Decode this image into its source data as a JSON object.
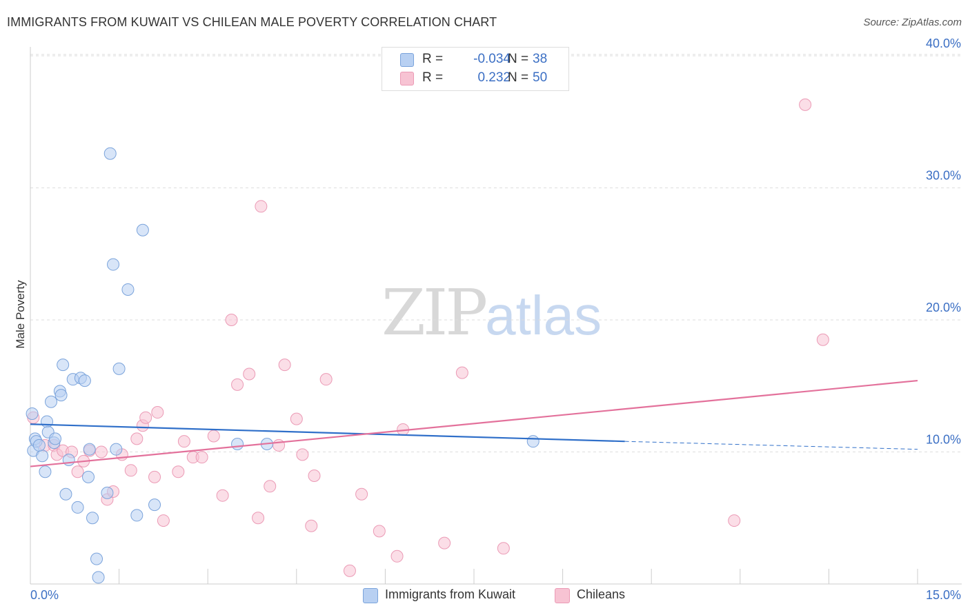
{
  "title": "IMMIGRANTS FROM KUWAIT VS CHILEAN MALE POVERTY CORRELATION CHART",
  "source": "Source: ZipAtlas.com",
  "watermark": {
    "zip": "ZIP",
    "atlas": "atlas"
  },
  "stats": [
    {
      "r_label": "R =",
      "r_value": "-0.034",
      "n_label": "N =",
      "n_value": "38"
    },
    {
      "r_label": "R =",
      "r_value": "0.232",
      "n_label": "N =",
      "n_value": "50"
    }
  ],
  "legend": [
    "Immigrants from Kuwait",
    "Chileans"
  ],
  "colors": {
    "kuwait_fill": "#b8d0f2",
    "kuwait_stroke": "#7aa3db",
    "kuwait_line": "#2f6fc9",
    "chile_fill": "#f7c3d3",
    "chile_stroke": "#eb9ab5",
    "chile_line": "#e3719b",
    "tick_text": "#3b6fc4",
    "grid": "#dddddd"
  },
  "chart_data": {
    "type": "scatter",
    "title": "IMMIGRANTS FROM KUWAIT VS CHILEAN MALE POVERTY CORRELATION CHART",
    "xlabel": "",
    "ylabel": "Male Poverty",
    "xlim": [
      0,
      15
    ],
    "ylim": [
      0,
      42
    ],
    "x_tick_labels": [
      "0.0%",
      "15.0%"
    ],
    "y_ticks": [
      10,
      20,
      30,
      40
    ],
    "y_tick_labels": [
      "10.0%",
      "20.0%",
      "30.0%",
      "40.0%"
    ],
    "grid": "horizontal dashed",
    "legend_position": "bottom",
    "series": [
      {
        "name": "Immigrants from Kuwait",
        "r": -0.034,
        "n": 38,
        "trend": {
          "x": [
            0,
            10.05
          ],
          "y": [
            12.1,
            10.8
          ],
          "dashed_to": [
            15,
            10.2
          ]
        },
        "points": [
          [
            0.03,
            12.9
          ],
          [
            0.05,
            10.1
          ],
          [
            0.08,
            11.0
          ],
          [
            0.1,
            10.8
          ],
          [
            0.2,
            9.7
          ],
          [
            0.25,
            8.5
          ],
          [
            0.28,
            12.3
          ],
          [
            0.3,
            11.5
          ],
          [
            0.35,
            13.8
          ],
          [
            0.4,
            10.7
          ],
          [
            0.42,
            11.0
          ],
          [
            0.5,
            14.6
          ],
          [
            0.52,
            14.3
          ],
          [
            0.55,
            16.6
          ],
          [
            0.6,
            6.8
          ],
          [
            0.65,
            9.4
          ],
          [
            0.72,
            15.5
          ],
          [
            0.8,
            5.8
          ],
          [
            0.85,
            15.6
          ],
          [
            0.92,
            15.4
          ],
          [
            0.98,
            8.1
          ],
          [
            1.0,
            10.2
          ],
          [
            1.05,
            5.0
          ],
          [
            1.12,
            1.9
          ],
          [
            1.15,
            0.5
          ],
          [
            1.3,
            6.9
          ],
          [
            1.35,
            32.6
          ],
          [
            1.4,
            24.2
          ],
          [
            1.45,
            10.2
          ],
          [
            1.5,
            16.3
          ],
          [
            1.65,
            22.3
          ],
          [
            1.8,
            5.2
          ],
          [
            1.9,
            26.8
          ],
          [
            2.1,
            6.0
          ],
          [
            3.5,
            10.6
          ],
          [
            4.0,
            10.6
          ],
          [
            8.5,
            10.8
          ],
          [
            0.15,
            10.5
          ]
        ]
      },
      {
        "name": "Chileans",
        "r": 0.232,
        "n": 50,
        "trend": {
          "x": [
            0,
            15
          ],
          "y": [
            8.9,
            15.4
          ]
        },
        "points": [
          [
            0.05,
            12.6
          ],
          [
            0.25,
            10.5
          ],
          [
            0.4,
            10.5
          ],
          [
            0.45,
            9.8
          ],
          [
            0.55,
            10.1
          ],
          [
            0.7,
            10.0
          ],
          [
            0.8,
            8.5
          ],
          [
            0.9,
            9.3
          ],
          [
            1.0,
            10.1
          ],
          [
            1.2,
            10.0
          ],
          [
            1.3,
            6.4
          ],
          [
            1.4,
            7.0
          ],
          [
            1.55,
            9.8
          ],
          [
            1.7,
            8.6
          ],
          [
            1.8,
            11.0
          ],
          [
            1.9,
            12.0
          ],
          [
            1.95,
            12.6
          ],
          [
            2.1,
            8.1
          ],
          [
            2.15,
            13.0
          ],
          [
            2.25,
            4.8
          ],
          [
            2.5,
            8.5
          ],
          [
            2.6,
            10.8
          ],
          [
            2.75,
            9.6
          ],
          [
            2.9,
            9.6
          ],
          [
            3.1,
            11.2
          ],
          [
            3.25,
            6.7
          ],
          [
            3.4,
            20.0
          ],
          [
            3.5,
            15.1
          ],
          [
            3.7,
            15.9
          ],
          [
            3.85,
            5.0
          ],
          [
            3.9,
            28.6
          ],
          [
            4.05,
            7.4
          ],
          [
            4.2,
            10.5
          ],
          [
            4.3,
            16.6
          ],
          [
            4.5,
            12.5
          ],
          [
            4.6,
            9.8
          ],
          [
            4.75,
            4.4
          ],
          [
            4.8,
            8.2
          ],
          [
            5.0,
            15.5
          ],
          [
            5.4,
            1.0
          ],
          [
            5.6,
            6.8
          ],
          [
            5.9,
            4.0
          ],
          [
            6.2,
            2.1
          ],
          [
            6.3,
            11.7
          ],
          [
            7.0,
            3.1
          ],
          [
            7.3,
            16.0
          ],
          [
            8.0,
            2.7
          ],
          [
            11.9,
            4.8
          ],
          [
            13.1,
            36.3
          ],
          [
            13.4,
            18.5
          ]
        ]
      }
    ]
  }
}
